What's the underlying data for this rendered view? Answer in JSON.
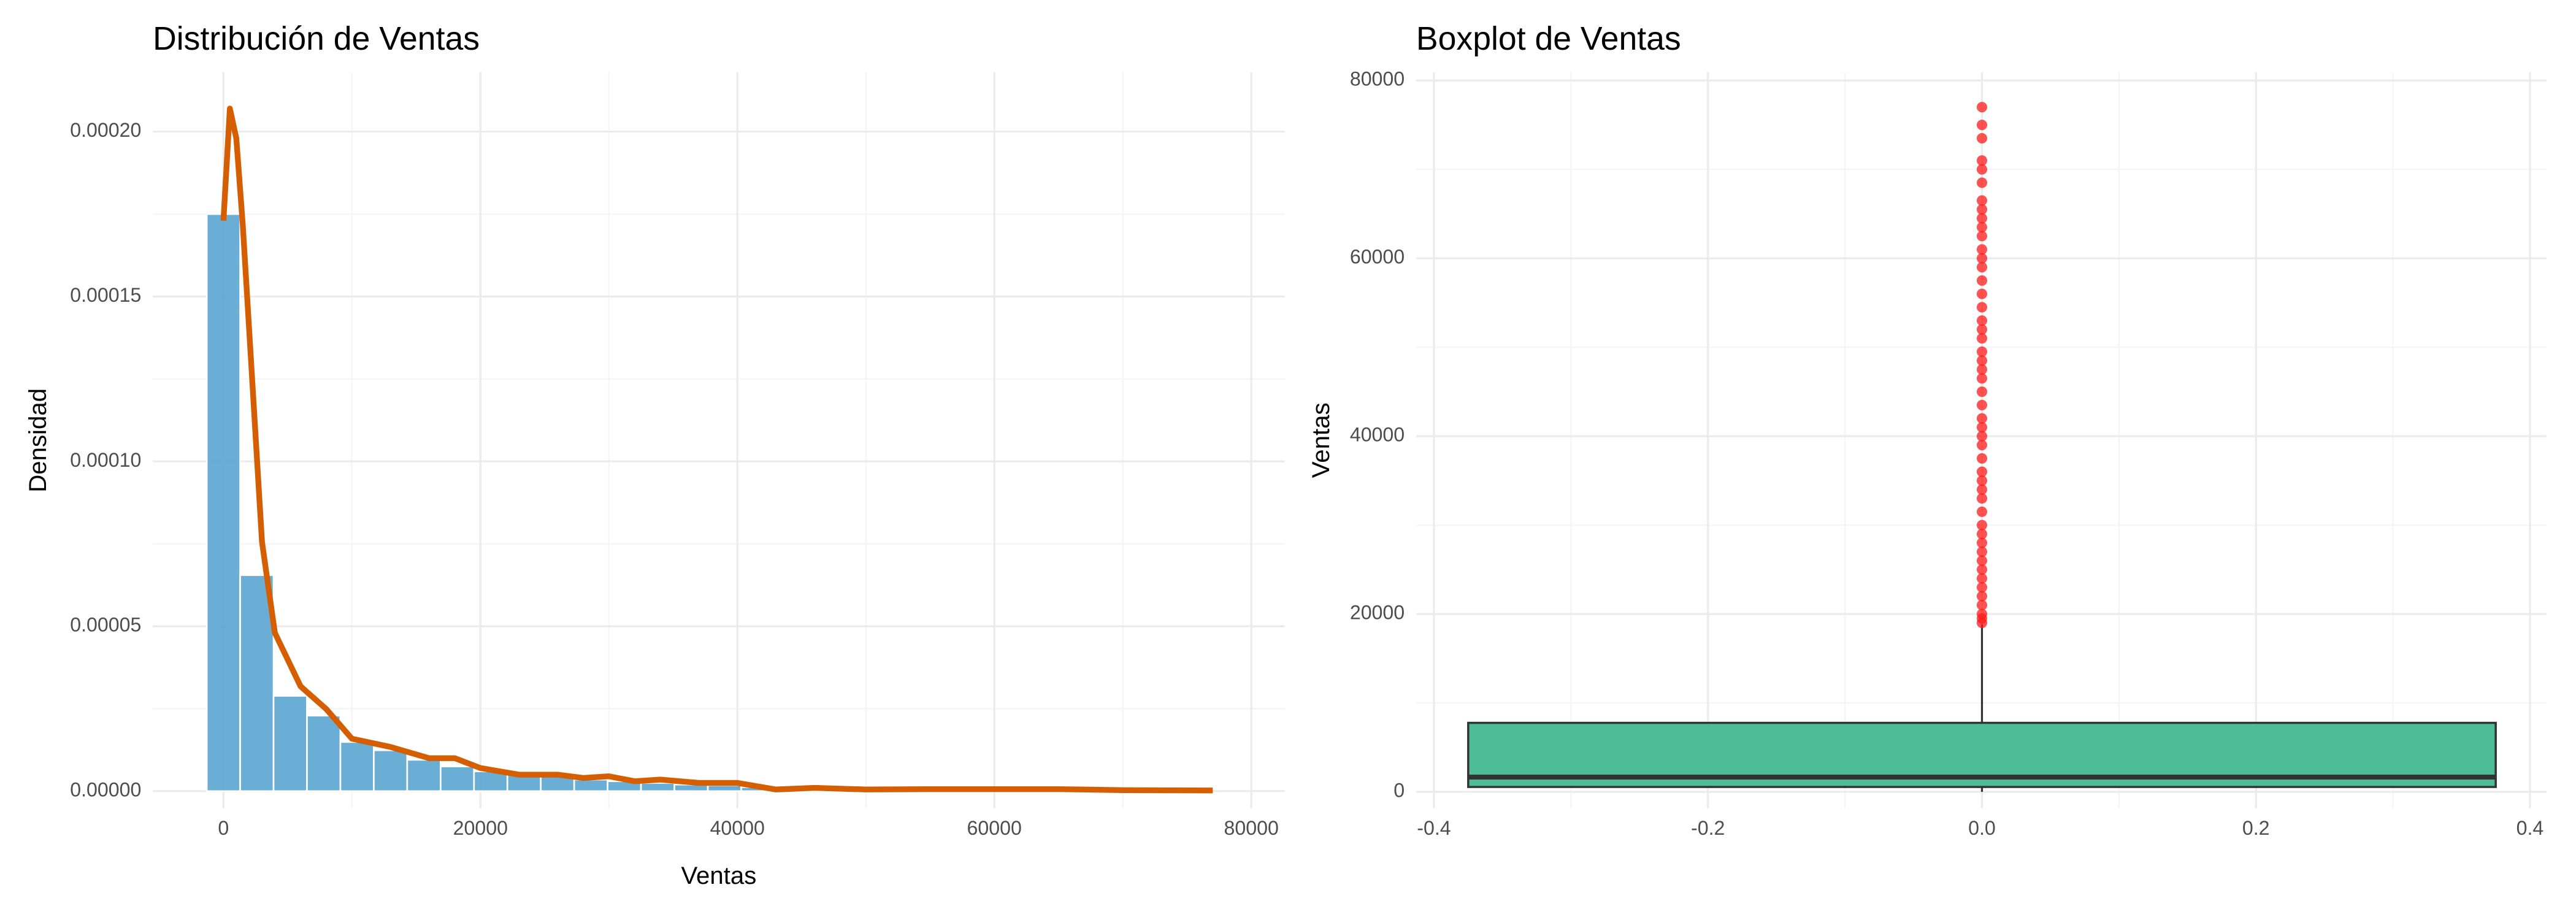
{
  "chart_data": [
    {
      "type": "histogram",
      "title": "Distribución de Ventas",
      "x_label": "Ventas",
      "y_label": "Densidad",
      "bins": [
        -1300,
        1300,
        3900,
        6500,
        9100,
        11700,
        14300,
        16900,
        19500,
        22100,
        24700,
        27300,
        29900,
        32500,
        35100,
        37700,
        40300,
        42900,
        45500,
        48100,
        50700,
        53300,
        55900,
        58500,
        61100,
        63700,
        66300,
        68900,
        71500,
        74100,
        76700
      ],
      "values": [
        0.000175,
        6.55e-05,
        2.89e-05,
        2.29e-05,
        1.49e-05,
        1.24e-05,
        9.5e-06,
        7.5e-06,
        6e-06,
        5e-06,
        4.5e-06,
        3.5e-06,
        3e-06,
        2.5e-06,
        2e-06,
        1.8e-06,
        1.2e-06,
        1e-06,
        8e-07,
        8e-07,
        6e-07,
        6e-07,
        5e-07,
        5e-07,
        4e-07,
        4e-07,
        4e-07,
        3e-07,
        3e-07,
        3e-07
      ],
      "color": "#5aa5d2",
      "line": {
        "color": "#d55e00",
        "x": [
          0,
          500,
          1000,
          1500,
          2000,
          3000,
          4000,
          6000,
          8000,
          10000,
          13000,
          16000,
          18000,
          20000,
          23000,
          26000,
          28000,
          30000,
          32000,
          34000,
          37000,
          40000,
          43000,
          46000,
          50000,
          55000,
          60000,
          65000,
          70000,
          77000
        ],
        "y": [
          0.000173,
          0.000207,
          0.000198,
          0.000172,
          0.00014,
          7.56e-05,
          4.8e-05,
          3.18e-05,
          2.49e-05,
          1.59e-05,
          1.34e-05,
          1e-05,
          1e-05,
          7e-06,
          5e-06,
          5e-06,
          4e-06,
          4.5e-06,
          3e-06,
          3.5e-06,
          2.5e-06,
          2.5e-06,
          5e-07,
          1e-06,
          5e-07,
          6e-07,
          6e-07,
          6e-07,
          3e-07,
          2e-07
        ]
      },
      "xlim": [
        -5500,
        82600
      ],
      "xticks": [
        0,
        20000,
        40000,
        60000,
        80000
      ],
      "ylim": [
        -5.2e-06,
        0.000218
      ],
      "yticks": [
        {
          "value": 0,
          "label": "0.00000"
        },
        {
          "value": 5e-05,
          "label": "0.00005"
        },
        {
          "value": 0.0001,
          "label": "0.00010"
        },
        {
          "value": 0.00015,
          "label": "0.00015"
        },
        {
          "value": 0.0002,
          "label": "0.00020"
        }
      ],
      "grid": true
    },
    {
      "type": "boxplot",
      "title": "Boxplot de Ventas",
      "y_label": "Ventas",
      "box": {
        "x": 0,
        "width": 0.75,
        "whisker_low": 0,
        "q1": 550,
        "median": 1660,
        "q3": 7760,
        "whisker_high": 18850,
        "outliers": [
          19000,
          19500,
          20000,
          21000,
          22000,
          23000,
          24000,
          25000,
          26000,
          27000,
          28000,
          29000,
          30000,
          31500,
          33000,
          34000,
          35000,
          36000,
          37500,
          39000,
          40000,
          41000,
          42000,
          43500,
          45000,
          46500,
          47500,
          48500,
          49500,
          51000,
          52000,
          53000,
          54500,
          56000,
          57500,
          59000,
          60000,
          61000,
          62500,
          63500,
          64500,
          65500,
          66500,
          68500,
          70000,
          71000,
          73500,
          75000,
          77000
        ]
      },
      "color": "#3cb58d",
      "outlier_color": "#ff1a1a",
      "xlim": [
        -0.413,
        0.412
      ],
      "xticks": [
        -0.4,
        -0.2,
        {
          "value": 0,
          "label": "0.0"
        },
        0.2,
        0.4
      ],
      "ylim": [
        -1848,
        80924
      ],
      "yticks": [
        0,
        20000,
        40000,
        60000,
        80000
      ],
      "grid": true
    }
  ]
}
